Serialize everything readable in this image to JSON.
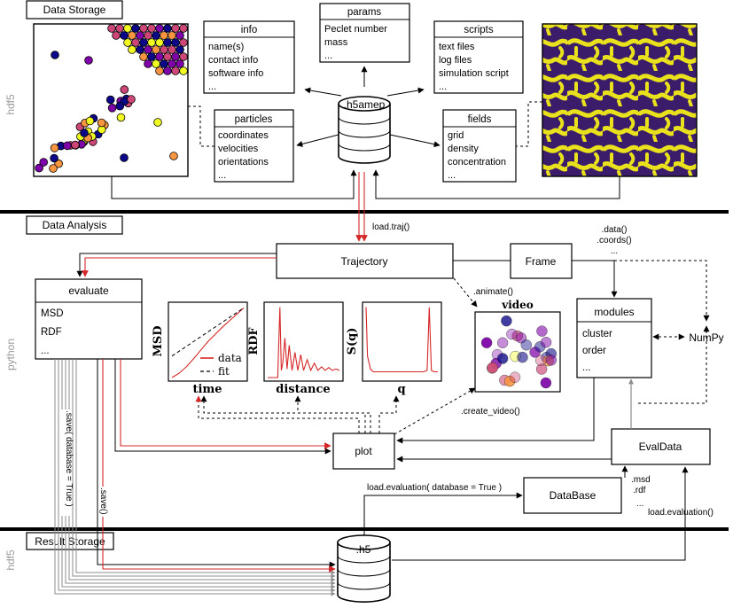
{
  "sections": {
    "storage": "Data Storage",
    "analysis": "Data Analysis",
    "result": "Result Storage"
  },
  "side_labels": {
    "hdf5_top": "hdf5",
    "python": "python",
    "hdf5_bottom": "hdf5"
  },
  "info_box": {
    "title": "info",
    "items": [
      "name(s)",
      "contact info",
      "software info",
      "..."
    ]
  },
  "params_box": {
    "title": "params",
    "items": [
      "Peclet number",
      "mass",
      "..."
    ]
  },
  "scripts_box": {
    "title": "scripts",
    "items": [
      "text files",
      "log files",
      "simulation script",
      "..."
    ]
  },
  "particles_box": {
    "title": "particles",
    "items": [
      "coordinates",
      "velocities",
      "orientations",
      "..."
    ]
  },
  "fields_box": {
    "title": "fields",
    "items": [
      "grid",
      "density",
      "concentration",
      "..."
    ]
  },
  "h5amep_label": ".h5amep",
  "h5_label": ".h5",
  "trajectory_label": "Trajectory",
  "frame_label": "Frame",
  "evaluate_box": {
    "title": "evaluate",
    "items": [
      "MSD",
      "RDF",
      "..."
    ]
  },
  "modules_box": {
    "title": "modules",
    "items": [
      "cluster",
      "order",
      "..."
    ]
  },
  "numpy_label": "NumPy",
  "plot_label": "plot",
  "evaldata_label": "EvalData",
  "database_label": "DataBase",
  "call_labels": {
    "load_traj": "load.traj()",
    "data_coords": [
      ".data()",
      ".coords()",
      "..."
    ],
    "animate": ".animate()",
    "create_video": ".create_video()",
    "save_database": ".save( database = True )",
    "save": ".save()",
    "load_evaluation_db": "load.evaluation( database = True )",
    "msd_rdf": [
      ".msd",
      ".rdf",
      "..."
    ],
    "load_evaluation": "load.evaluation()"
  },
  "video_title": "video",
  "msd_plot": {
    "ylabel": "MSD",
    "xlabel": "time",
    "legend": [
      {
        "name": "data",
        "color": "#d62728",
        "style": "solid"
      },
      {
        "name": "fit",
        "color": "#000000",
        "style": "dashed"
      }
    ]
  },
  "rdf_plot": {
    "ylabel": "RDF",
    "xlabel": "distance"
  },
  "sq_plot": {
    "ylabel": "S(q)",
    "xlabel": "q"
  },
  "colors": {
    "red_arrow": "#d62728",
    "gray_arrow": "#8c8c8c",
    "plasma_dark": "#0d0887",
    "plasma_purple": "#7e03a8",
    "plasma_pink": "#cc4778",
    "plasma_orange": "#f89540",
    "plasma_yellow": "#f0f921",
    "field_dark": "#3b1c6b",
    "field_yellow": "#e9e11c"
  },
  "chart_data": [
    {
      "type": "line",
      "ylabel": "MSD",
      "xlabel": "time",
      "series": [
        {
          "name": "data",
          "x": [
            0,
            0.1,
            0.2,
            0.3,
            0.4,
            0.5,
            0.6,
            0.7,
            0.8,
            0.9,
            1.0
          ],
          "y": [
            0,
            0.06,
            0.15,
            0.26,
            0.38,
            0.5,
            0.6,
            0.7,
            0.79,
            0.88,
            0.97
          ]
        },
        {
          "name": "fit",
          "x": [
            0,
            1.0
          ],
          "y": [
            0.3,
            0.97
          ]
        }
      ]
    },
    {
      "type": "line",
      "ylabel": "RDF",
      "xlabel": "distance",
      "series": [
        {
          "x": [
            0,
            0.14,
            0.17,
            0.19,
            0.21,
            0.24,
            0.27,
            0.3,
            0.34,
            0.38,
            0.42,
            0.46,
            0.5,
            0.55,
            0.6,
            0.65,
            0.7,
            0.75,
            0.8,
            0.85,
            0.9,
            0.95,
            1.0
          ],
          "y": [
            0,
            0,
            0.98,
            0.1,
            0.2,
            0.55,
            0.12,
            0.45,
            0.1,
            0.35,
            0.1,
            0.32,
            0.1,
            0.25,
            0.1,
            0.2,
            0.1,
            0.15,
            0.1,
            0.14,
            0.1,
            0.12,
            0.1
          ]
        }
      ]
    },
    {
      "type": "line",
      "ylabel": "S(q)",
      "xlabel": "q",
      "series": [
        {
          "x": [
            0,
            0.02,
            0.06,
            0.1,
            0.15,
            0.2,
            0.3,
            0.4,
            0.5,
            0.6,
            0.7,
            0.8,
            0.85,
            0.88,
            0.91,
            0.95,
            1.0
          ],
          "y": [
            0.98,
            0.3,
            0.12,
            0.08,
            0.08,
            0.08,
            0.08,
            0.08,
            0.08,
            0.08,
            0.08,
            0.08,
            0.1,
            0.98,
            0.1,
            0.08,
            0.08
          ]
        }
      ]
    }
  ]
}
